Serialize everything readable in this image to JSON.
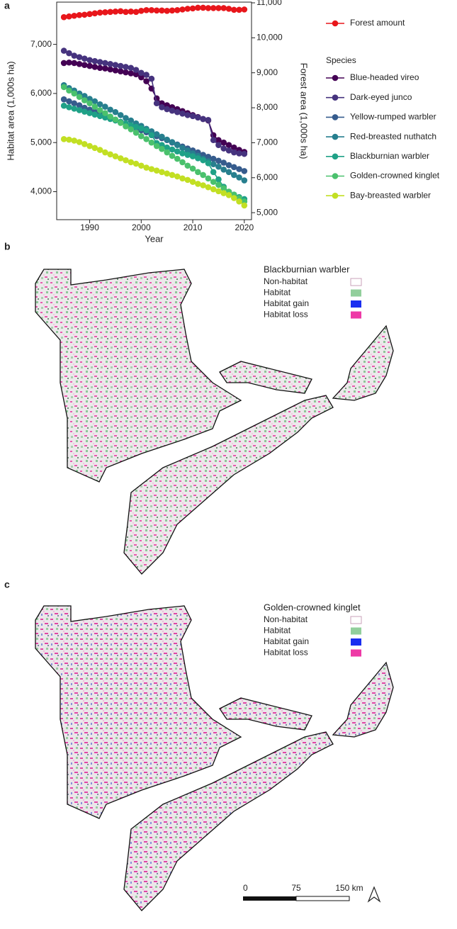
{
  "chart_data": {
    "type": "line",
    "panel_label": "a",
    "xlabel": "Year",
    "ylabel": "Habitat area (1,000s ha)",
    "y2label": "Forest area (1,000s ha)",
    "x": [
      1985,
      1986,
      1987,
      1988,
      1989,
      1990,
      1991,
      1992,
      1993,
      1994,
      1995,
      1996,
      1997,
      1998,
      1999,
      2000,
      2001,
      2002,
      2003,
      2004,
      2005,
      2006,
      2007,
      2008,
      2009,
      2010,
      2011,
      2012,
      2013,
      2014,
      2015,
      2016,
      2017,
      2018,
      2019,
      2020
    ],
    "xlim": [
      1983.6,
      2021.4
    ],
    "xticks": [
      1990,
      2000,
      2010,
      2020
    ],
    "ylim": [
      3430,
      7860
    ],
    "yticks": [
      {
        "value": 4000,
        "label": "4,000"
      },
      {
        "value": 5000,
        "label": "5,000"
      },
      {
        "value": 6000,
        "label": "6,000"
      },
      {
        "value": 7000,
        "label": "7,000"
      }
    ],
    "y2lim": [
      4800,
      11020
    ],
    "y2ticks": [
      {
        "value": 5000,
        "label": "5,000"
      },
      {
        "value": 6000,
        "label": "6,000"
      },
      {
        "value": 7000,
        "label": "7,000"
      },
      {
        "value": 8000,
        "label": "8,000"
      },
      {
        "value": 9000,
        "label": "9,000"
      },
      {
        "value": 10000,
        "label": "10,000"
      },
      {
        "value": 11000,
        "label": "11,000"
      }
    ],
    "legend_title": "Species",
    "series": [
      {
        "name": "Forest amount",
        "color": "#e8161b",
        "axis": "y2",
        "values": [
          10590,
          10610,
          10630,
          10650,
          10660,
          10680,
          10700,
          10720,
          10730,
          10740,
          10750,
          10760,
          10740,
          10750,
          10740,
          10770,
          10790,
          10790,
          10780,
          10780,
          10770,
          10780,
          10790,
          10810,
          10830,
          10840,
          10860,
          10860,
          10850,
          10850,
          10850,
          10850,
          10830,
          10800,
          10800,
          10810
        ]
      },
      {
        "name": "Blue-headed vireo",
        "color": "#440154",
        "values": [
          6620,
          6630,
          6620,
          6600,
          6580,
          6560,
          6540,
          6520,
          6510,
          6490,
          6470,
          6450,
          6430,
          6410,
          6390,
          6330,
          6250,
          6100,
          5900,
          5800,
          5760,
          5720,
          5680,
          5640,
          5600,
          5560,
          5520,
          5480,
          5450,
          5150,
          5050,
          5000,
          4950,
          4900,
          4850,
          4810
        ]
      },
      {
        "name": "Dark-eyed junco",
        "color": "#46337e",
        "values": [
          6870,
          6820,
          6770,
          6740,
          6710,
          6680,
          6660,
          6640,
          6620,
          6600,
          6580,
          6560,
          6540,
          6520,
          6480,
          6420,
          6380,
          6300,
          5800,
          5720,
          5680,
          5650,
          5620,
          5590,
          5560,
          5540,
          5510,
          5480,
          5460,
          5050,
          4950,
          4880,
          4840,
          4800,
          4780,
          4770
        ]
      },
      {
        "name": "Yellow-rumped warbler",
        "color": "#365c8d",
        "values": [
          5880,
          5840,
          5800,
          5760,
          5710,
          5670,
          5630,
          5590,
          5550,
          5510,
          5460,
          5420,
          5380,
          5340,
          5300,
          5250,
          5210,
          5170,
          5130,
          5090,
          5050,
          5000,
          4960,
          4920,
          4880,
          4840,
          4800,
          4750,
          4710,
          4670,
          4630,
          4590,
          4540,
          4500,
          4460,
          4420
        ]
      },
      {
        "name": "Red-breasted nuthatch",
        "color": "#277f8e",
        "values": [
          6170,
          6110,
          6060,
          6000,
          5950,
          5890,
          5840,
          5780,
          5730,
          5670,
          5620,
          5560,
          5500,
          5450,
          5390,
          5340,
          5280,
          5230,
          5170,
          5120,
          5060,
          5010,
          4950,
          4890,
          4840,
          4780,
          4730,
          4670,
          4620,
          4560,
          4510,
          4450,
          4400,
          4340,
          4290,
          4230
        ]
      },
      {
        "name": "Blackburnian warbler",
        "color": "#1fa187",
        "values": [
          5750,
          5720,
          5690,
          5660,
          5630,
          5600,
          5570,
          5540,
          5510,
          5480,
          5450,
          5420,
          5390,
          5350,
          5320,
          5290,
          5250,
          5150,
          4990,
          4950,
          4900,
          4860,
          4820,
          4780,
          4750,
          4720,
          4680,
          4640,
          4580,
          4400,
          4250,
          4100,
          4000,
          3940,
          3890,
          3850
        ]
      },
      {
        "name": "Golden-crowned kinglet",
        "color": "#4ac16d",
        "values": [
          6130,
          6060,
          6000,
          5930,
          5860,
          5800,
          5730,
          5660,
          5600,
          5530,
          5470,
          5400,
          5330,
          5270,
          5200,
          5130,
          5070,
          5000,
          4930,
          4870,
          4800,
          4730,
          4670,
          4600,
          4530,
          4470,
          4400,
          4340,
          4270,
          4200,
          4140,
          4070,
          4000,
          3940,
          3870,
          3800
        ]
      },
      {
        "name": "Bay-breasted warbler",
        "color": "#c2df23",
        "values": [
          5070,
          5060,
          5040,
          5010,
          4970,
          4930,
          4890,
          4850,
          4800,
          4760,
          4720,
          4680,
          4640,
          4600,
          4570,
          4530,
          4490,
          4460,
          4430,
          4400,
          4370,
          4340,
          4310,
          4270,
          4240,
          4200,
          4160,
          4130,
          4090,
          4050,
          4010,
          3970,
          3930,
          3870,
          3800,
          3720
        ]
      }
    ]
  },
  "maps": [
    {
      "panel_label": "b",
      "legend_title": "Blackburnian warbler",
      "legend": [
        {
          "label": "Non-habitat",
          "color": "#ffffff"
        },
        {
          "label": "Habitat",
          "color": "#92cf9c"
        },
        {
          "label": "Habitat gain",
          "color": "#1a2ef0"
        },
        {
          "label": "Habitat loss",
          "color": "#ee3aa6"
        }
      ]
    },
    {
      "panel_label": "c",
      "legend_title": "Golden-crowned kinglet",
      "legend": [
        {
          "label": "Non-habitat",
          "color": "#ffffff"
        },
        {
          "label": "Habitat",
          "color": "#92cf9c"
        },
        {
          "label": "Habitat gain",
          "color": "#1a2ef0"
        },
        {
          "label": "Habitat loss",
          "color": "#ee3aa6"
        }
      ],
      "scale_bar": [
        "0",
        "75",
        "150 km"
      ]
    }
  ]
}
